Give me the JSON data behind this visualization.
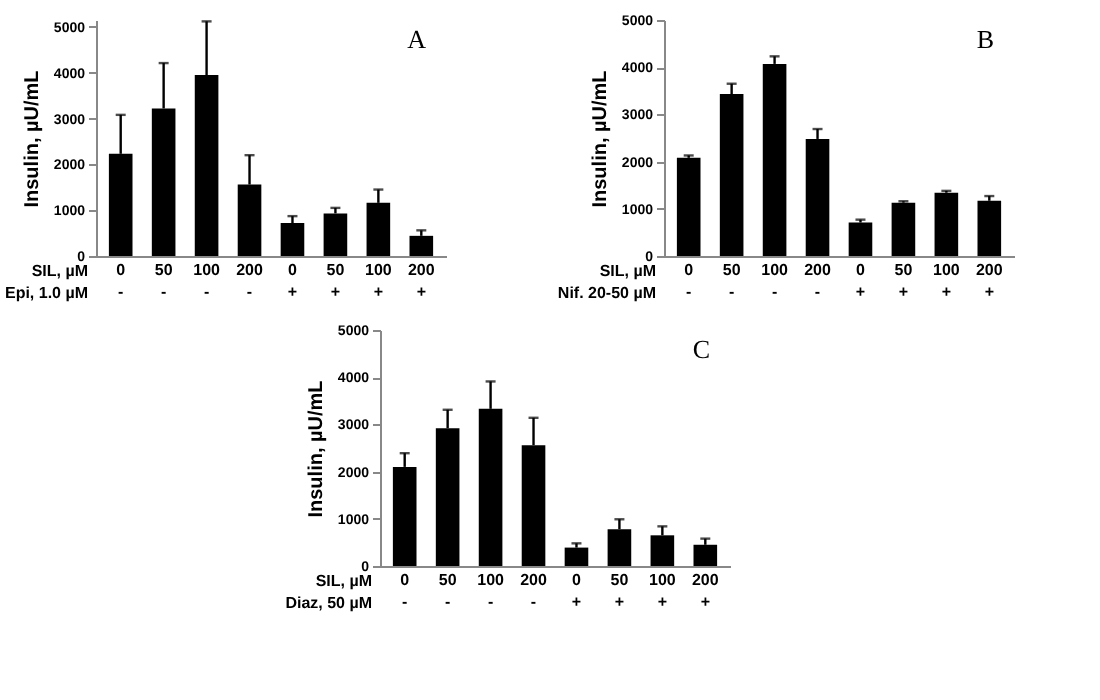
{
  "chart_data": [
    {
      "type": "bar",
      "ylabel": "Insulin, µU/mL",
      "annotations": [
        "A",
        "SIL,  µM",
        "Epi, 1.0 µM"
      ],
      "categories": [
        "0\n-",
        "50\n-",
        "100\n-",
        "200\n-",
        "0\n+",
        "50\n+",
        "100\n+",
        "200\n+"
      ],
      "values": [
        2230,
        3220,
        3950,
        1560,
        720,
        930,
        1160,
        440
      ],
      "errors": [
        [
          2230,
          3080
        ],
        [
          3220,
          4210
        ],
        [
          3950,
          5120
        ],
        [
          1560,
          2200
        ],
        [
          720,
          870
        ],
        [
          930,
          1050
        ],
        [
          1160,
          1450
        ],
        [
          440,
          560
        ]
      ],
      "color": "#000000",
      "ylim": [
        0,
        5150
      ],
      "yticks": [
        0,
        1000,
        2000,
        3000,
        4000,
        5000
      ],
      "grid": false
    },
    {
      "type": "bar",
      "ylabel": "Insulin, µU/mL",
      "annotations": [
        "B",
        "SIL, µM",
        "Nif. 20-50 µM"
      ],
      "categories": [
        "0\n-",
        "50\n-",
        "100\n-",
        "200\n-",
        "0\n+",
        "50\n+",
        "100\n+",
        "200\n+"
      ],
      "values": [
        2080,
        3430,
        4070,
        2480,
        710,
        1130,
        1340,
        1170
      ],
      "errors": [
        [
          2080,
          2130
        ],
        [
          3430,
          3650
        ],
        [
          4070,
          4230
        ],
        [
          2480,
          2690
        ],
        [
          710,
          770
        ],
        [
          1130,
          1160
        ],
        [
          1340,
          1380
        ],
        [
          1170,
          1270
        ]
      ],
      "color": "#000000",
      "ylim": [
        0,
        5000
      ],
      "yticks": [
        0,
        1000,
        2000,
        3000,
        4000,
        5000
      ],
      "grid": false
    },
    {
      "type": "bar",
      "ylabel": "Insulin, µU/mL",
      "annotations": [
        "C",
        "SIL, µM",
        "Diaz, 50 µM"
      ],
      "categories": [
        "0\n-",
        "50\n-",
        "100\n-",
        "200\n-",
        "0\n+",
        "50\n+",
        "100\n+",
        "200\n+"
      ],
      "values": [
        2100,
        2920,
        3330,
        2560,
        390,
        780,
        650,
        450
      ],
      "errors": [
        [
          2100,
          2390
        ],
        [
          2920,
          3310
        ],
        [
          3330,
          3910
        ],
        [
          2560,
          3140
        ],
        [
          390,
          480
        ],
        [
          780,
          990
        ],
        [
          650,
          840
        ],
        [
          450,
          580
        ]
      ],
      "color": "#000000",
      "ylim": [
        0,
        5000
      ],
      "yticks": [
        0,
        1000,
        2000,
        3000,
        4000,
        5000
      ],
      "grid": false
    }
  ]
}
